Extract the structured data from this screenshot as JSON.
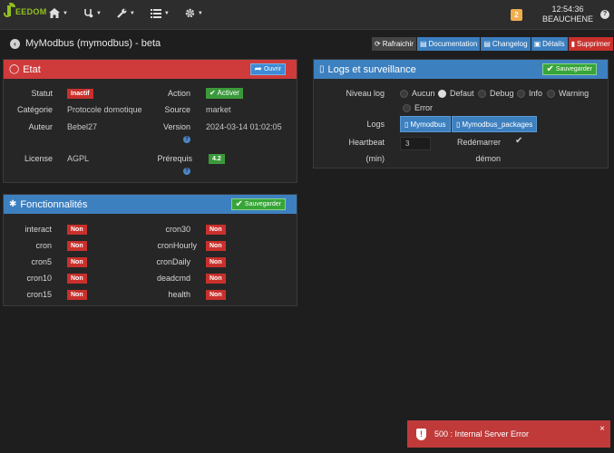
{
  "navbar": {
    "logo_text": "EEDOM",
    "menus": [
      {
        "icon": "home-icon"
      },
      {
        "icon": "stethoscope-icon"
      },
      {
        "icon": "wrench-icon"
      },
      {
        "icon": "list-icon"
      },
      {
        "icon": "gear-icon"
      }
    ],
    "notification_count": "2",
    "time": "12:54:36",
    "location": "BEAUCHENE",
    "help": "?"
  },
  "page": {
    "title": "MyModbus (mymodbus) - beta",
    "buttons": {
      "refresh": "Rafraichir",
      "documentation": "Documentation",
      "changelog": "Changelog",
      "details": "Détails",
      "delete": "Supprimer"
    }
  },
  "etat": {
    "title": "Etat",
    "open_button": "Ouvrir",
    "statut_label": "Statut",
    "statut_value": "Inactif",
    "action_label": "Action",
    "action_button": "Activer",
    "categorie_label": "Catégorie",
    "categorie_value": "Protocole domotique",
    "source_label": "Source",
    "source_value": "market",
    "auteur_label": "Auteur",
    "auteur_value": "Bebel27",
    "version_label": "Version",
    "version_value": "2024-03-14 01:02:05",
    "license_label": "License",
    "license_value": "AGPL",
    "prerequis_label": "Prérequis",
    "prerequis_value": "4.2"
  },
  "logs": {
    "title": "Logs et surveillance",
    "save_button": "Sauvegarder",
    "niveau_label": "Niveau log",
    "levels": [
      "Aucun",
      "Defaut",
      "Debug",
      "Info",
      "Warning",
      "Error"
    ],
    "selected_level": "Defaut",
    "logs_label": "Logs",
    "log_files": [
      "Mymodbus",
      "Mymodbus_packages"
    ],
    "heartbeat_label_1": "Heartbeat",
    "heartbeat_label_2": "(min)",
    "heartbeat_value": "3",
    "restart_label_1": "Redémarrer",
    "restart_label_2": "démon",
    "restart_checked": true
  },
  "fonctionnalites": {
    "title": "Fonctionnalités",
    "save_button": "Sauvegarder",
    "left": [
      {
        "name": "interact",
        "value": "Non"
      },
      {
        "name": "cron",
        "value": "Non"
      },
      {
        "name": "cron5",
        "value": "Non"
      },
      {
        "name": "cron10",
        "value": "Non"
      },
      {
        "name": "cron15",
        "value": "Non"
      }
    ],
    "right": [
      {
        "name": "cron30",
        "value": "Non"
      },
      {
        "name": "cronHourly",
        "value": "Non"
      },
      {
        "name": "cronDaily",
        "value": "Non"
      },
      {
        "name": "deadcmd",
        "value": "Non"
      },
      {
        "name": "health",
        "value": "Non"
      }
    ]
  },
  "toast": {
    "message": "500 : Internal Server Error",
    "close": "×"
  },
  "colors": {
    "danger": "#cf3b3b",
    "primary": "#3d80c0",
    "success": "#3a9a3a",
    "warning": "#f0ad4e",
    "logo": "#94c11f"
  }
}
